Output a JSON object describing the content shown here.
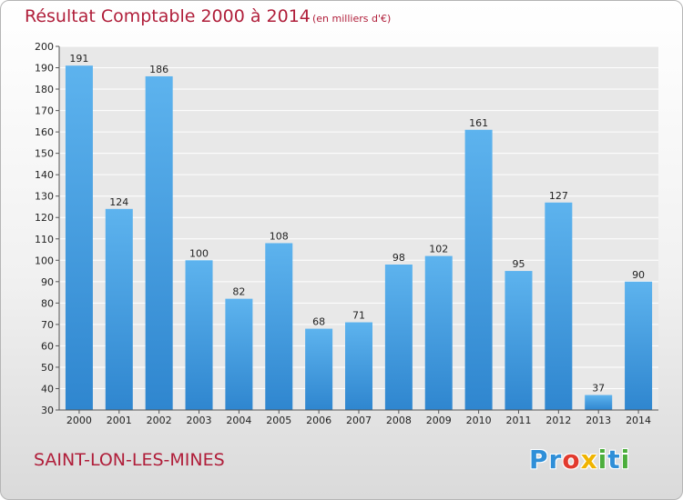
{
  "chart_data": {
    "type": "bar",
    "title": "Résultat Comptable 2000 à 2014",
    "subtitle": "(en milliers d'€)",
    "categories": [
      "2000",
      "2001",
      "2002",
      "2003",
      "2004",
      "2005",
      "2006",
      "2007",
      "2008",
      "2009",
      "2010",
      "2011",
      "2012",
      "2013",
      "2014"
    ],
    "values": [
      191,
      124,
      186,
      100,
      82,
      108,
      68,
      71,
      98,
      102,
      161,
      95,
      127,
      37,
      90
    ],
    "ylim": [
      30,
      200
    ],
    "ytick_step": 10,
    "xlabel": "",
    "ylabel": "",
    "grid": true,
    "bar_color": "#4a9fe0"
  },
  "footer": {
    "commune": "SAINT-LON-LES-MINES",
    "logo_letters": [
      "P",
      "r",
      "o",
      "x",
      "i",
      "t",
      "i"
    ],
    "logo_colors": [
      "#2f8fd8",
      "#2f8fd8",
      "#e23a2e",
      "#f0b400",
      "#4cae3c",
      "#2f8fd8",
      "#4cae3c"
    ]
  }
}
